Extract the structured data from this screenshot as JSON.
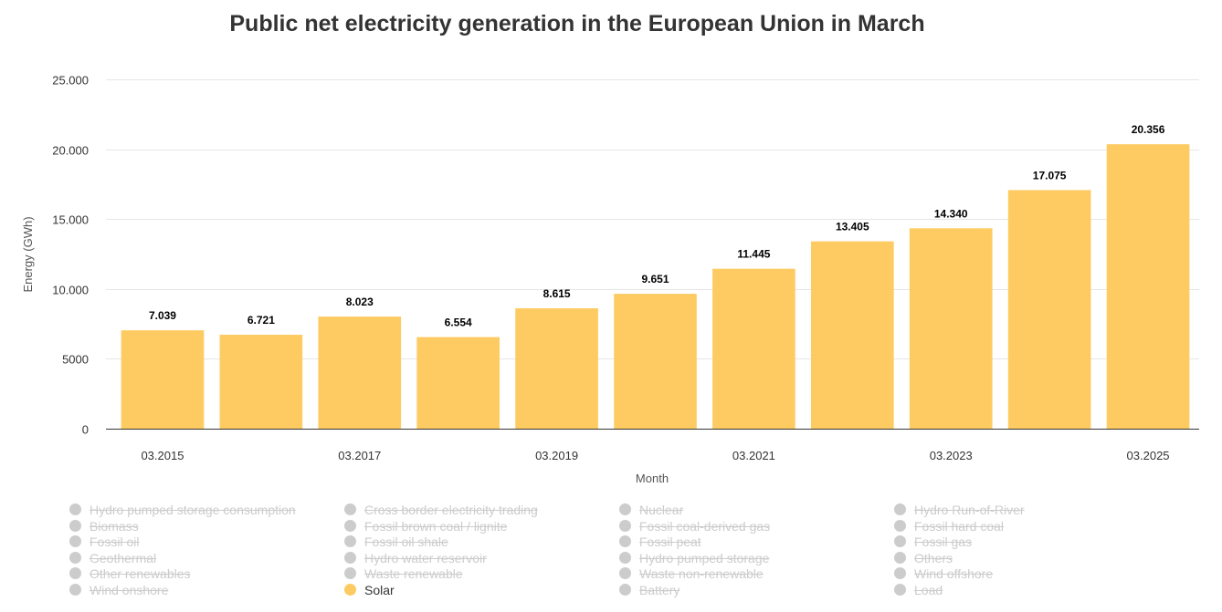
{
  "chart_data": {
    "type": "bar",
    "title": "Public net electricity generation in the European Union in March",
    "xlabel": "Month",
    "ylabel": "Energy (GWh)",
    "ylim": [
      0,
      25000
    ],
    "yticks": [
      0,
      5000,
      10000,
      15000,
      20000,
      25000
    ],
    "ytick_labels": [
      "0",
      "5000",
      "10.000",
      "15.000",
      "20.000",
      "25.000"
    ],
    "categories": [
      "03.2015",
      "03.2016",
      "03.2017",
      "03.2018",
      "03.2019",
      "03.2020",
      "03.2021",
      "03.2022",
      "03.2023",
      "03.2024",
      "03.2025"
    ],
    "xtick_labels_shown": [
      "03.2015",
      "",
      "03.2017",
      "",
      "03.2019",
      "",
      "03.2021",
      "",
      "03.2023",
      "",
      "03.2025"
    ],
    "series": [
      {
        "name": "Solar",
        "color": "#fecb62",
        "values": [
          7039,
          6721,
          8023,
          6554,
          8615,
          9651,
          11445,
          13405,
          14340,
          17075,
          20356
        ],
        "data_labels": [
          "7.039",
          "6.721",
          "8.023",
          "6.554",
          "8.615",
          "9.651",
          "11.445",
          "13.405",
          "14.340",
          "17.075",
          "20.356"
        ]
      }
    ],
    "grid": true,
    "legend_position": "bottom"
  },
  "legend": {
    "items": [
      {
        "label": "Hydro pumped storage consumption",
        "visible": false
      },
      {
        "label": "Cross border electricity trading",
        "visible": false
      },
      {
        "label": "Nuclear",
        "visible": false
      },
      {
        "label": "Hydro Run-of-River",
        "visible": false
      },
      {
        "label": "Biomass",
        "visible": false
      },
      {
        "label": "Fossil brown coal / lignite",
        "visible": false
      },
      {
        "label": "Fossil coal-derived gas",
        "visible": false
      },
      {
        "label": "Fossil hard coal",
        "visible": false
      },
      {
        "label": "Fossil oil",
        "visible": false
      },
      {
        "label": "Fossil oil shale",
        "visible": false
      },
      {
        "label": "Fossil peat",
        "visible": false
      },
      {
        "label": "Fossil gas",
        "visible": false
      },
      {
        "label": "Geothermal",
        "visible": false
      },
      {
        "label": "Hydro water reservoir",
        "visible": false
      },
      {
        "label": "Hydro pumped storage",
        "visible": false
      },
      {
        "label": "Others",
        "visible": false
      },
      {
        "label": "Other renewables",
        "visible": false
      },
      {
        "label": "Waste renewable",
        "visible": false
      },
      {
        "label": "Waste non-renewable",
        "visible": false
      },
      {
        "label": "Wind offshore",
        "visible": false
      },
      {
        "label": "Wind onshore",
        "visible": false
      },
      {
        "label": "Solar",
        "visible": true,
        "color": "#fecb62"
      },
      {
        "label": "Battery",
        "visible": false
      },
      {
        "label": "Load",
        "visible": false
      }
    ]
  }
}
